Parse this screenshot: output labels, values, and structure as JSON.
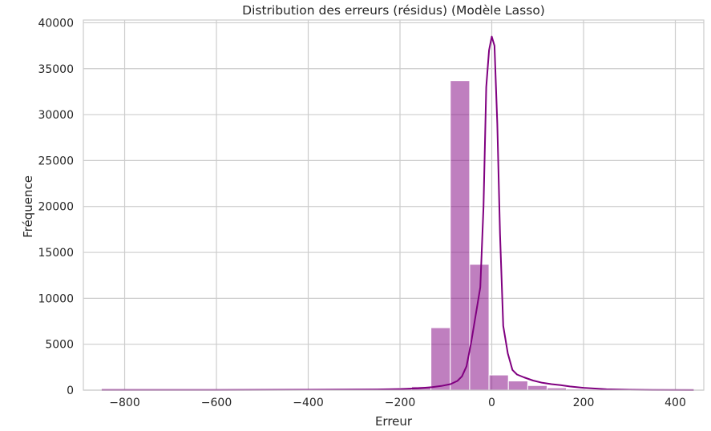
{
  "chart_data": {
    "type": "bar",
    "title": "Distribution des erreurs (résidus) (Modèle Lasso)",
    "xlabel": "Erreur",
    "ylabel": "Fréquence",
    "xlim": [
      -890,
      462
    ],
    "ylim": [
      0,
      40300
    ],
    "x_ticks": [
      -800,
      -600,
      -400,
      -200,
      0,
      200,
      400
    ],
    "x_tick_labels": [
      "−800",
      "−600",
      "−400",
      "−200",
      "0",
      "200",
      "400"
    ],
    "y_ticks": [
      0,
      5000,
      10000,
      15000,
      20000,
      25000,
      30000,
      35000,
      40000
    ],
    "y_tick_labels": [
      "0",
      "5000",
      "10000",
      "15000",
      "20000",
      "25000",
      "30000",
      "35000",
      "40000"
    ],
    "grid": true,
    "bar_color": "#800080",
    "bar_opacity": 0.5,
    "kde_color": "#800080",
    "bins": {
      "start": -850,
      "width": 42.2,
      "counts": [
        5,
        4,
        3,
        3,
        3,
        3,
        4,
        5,
        6,
        10,
        15,
        25,
        40,
        70,
        120,
        220,
        400,
        6800,
        33700,
        13700,
        1650,
        1000,
        500,
        250,
        120,
        60,
        30,
        15,
        10,
        5,
        3,
        2
      ]
    },
    "kde": {
      "x": [
        -850,
        -600,
        -400,
        -300,
        -250,
        -200,
        -160,
        -130,
        -110,
        -90,
        -75,
        -65,
        -55,
        -45,
        -35,
        -25,
        -18,
        -12,
        -6,
        0,
        6,
        12,
        18,
        25,
        35,
        45,
        55,
        70,
        90,
        110,
        130,
        150,
        170,
        200,
        250,
        300,
        350,
        440
      ],
      "y": [
        20,
        30,
        40,
        60,
        80,
        120,
        200,
        330,
        450,
        650,
        1000,
        1500,
        2600,
        5200,
        8200,
        11200,
        20000,
        33000,
        37000,
        38500,
        37500,
        29000,
        17000,
        7000,
        4000,
        2200,
        1700,
        1400,
        1050,
        800,
        650,
        550,
        400,
        250,
        100,
        40,
        15,
        5
      ]
    }
  }
}
